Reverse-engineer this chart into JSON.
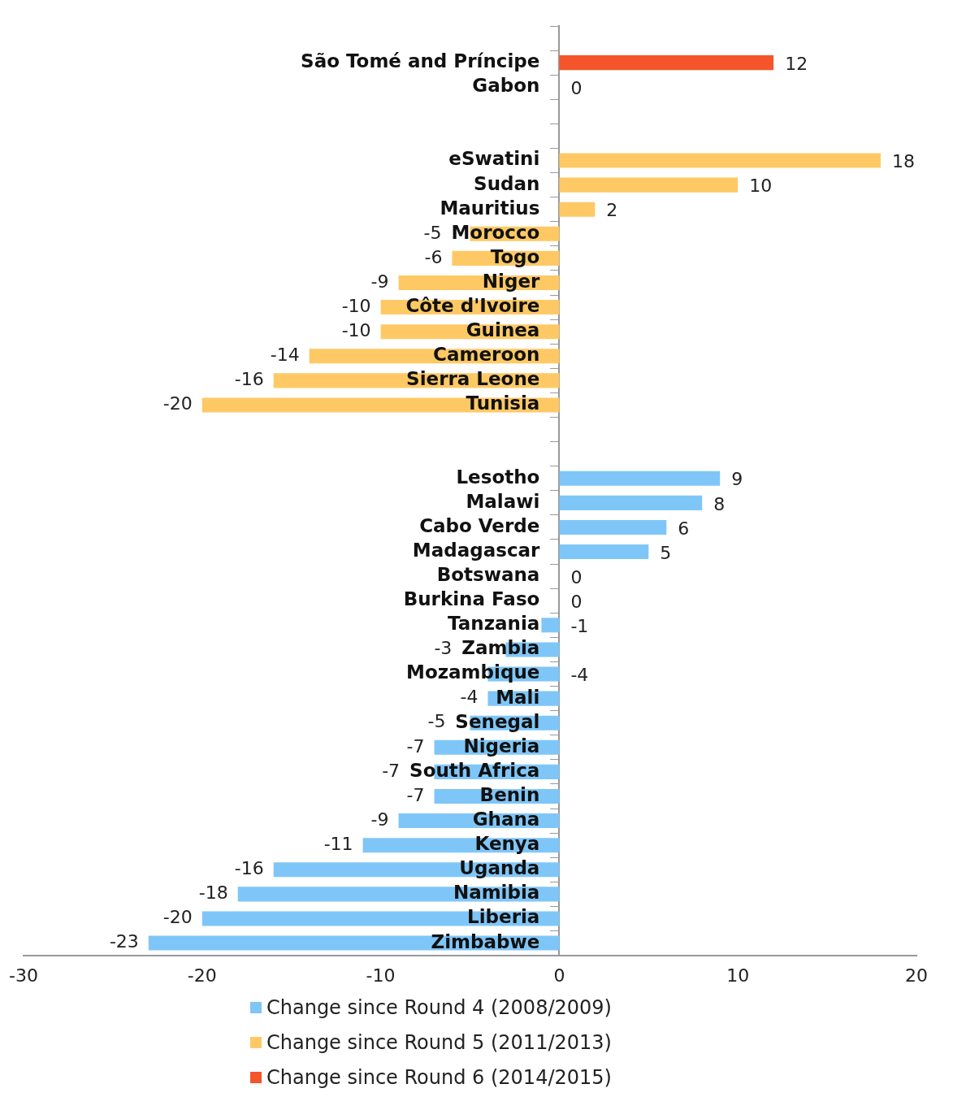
{
  "chart_data": {
    "type": "bar",
    "orientation": "horizontal",
    "categories": [
      null,
      "São Tomé and Príncipe",
      "Gabon",
      null,
      null,
      "eSwatini",
      "Sudan",
      "Mauritius",
      "Morocco",
      "Togo",
      "Niger",
      "Côte d'Ivoire",
      "Guinea",
      "Cameroon",
      "Sierra Leone",
      "Tunisia",
      null,
      null,
      "Lesotho",
      "Malawi",
      "Cabo Verde",
      "Madagascar",
      "Botswana",
      "Burkina Faso",
      "Tanzania",
      "Zambia",
      "Mozambique",
      "Mali",
      "Senegal",
      "Nigeria",
      "South Africa",
      "Benin",
      "Ghana",
      "Kenya",
      "Uganda",
      "Namibia",
      "Liberia",
      "Zimbabwe"
    ],
    "series": [
      {
        "name": "Change since Round 4 (2008/2009)",
        "color": "#7fc6f8",
        "values": [
          null,
          null,
          null,
          null,
          null,
          null,
          null,
          null,
          null,
          null,
          null,
          null,
          null,
          null,
          null,
          null,
          null,
          null,
          9,
          8,
          6,
          5,
          0,
          0,
          -1,
          -3,
          -4,
          -4,
          -5,
          -7,
          -7,
          -7,
          -9,
          -11,
          -16,
          -18,
          -20,
          -23
        ]
      },
      {
        "name": "Change since Round 5 (2011/2013)",
        "color": "#fec965",
        "values": [
          null,
          null,
          null,
          null,
          null,
          18,
          10,
          2,
          -5,
          -6,
          -9,
          -10,
          -10,
          -14,
          -16,
          -20,
          null,
          null,
          null,
          null,
          null,
          null,
          null,
          null,
          null,
          null,
          null,
          null,
          null,
          null,
          null,
          null,
          null,
          null,
          null,
          null,
          null,
          null
        ]
      },
      {
        "name": "Change since Round 6 (2014/2015)",
        "color": "#f4552a",
        "values": [
          null,
          12,
          0,
          null,
          null,
          null,
          null,
          null,
          null,
          null,
          null,
          null,
          null,
          null,
          null,
          null,
          null,
          null,
          null,
          null,
          null,
          null,
          null,
          null,
          null,
          null,
          null,
          null,
          null,
          null,
          null,
          null,
          null,
          null,
          null,
          null,
          null,
          null
        ]
      }
    ],
    "xlim": [
      -30,
      20
    ],
    "xticks": [
      -30,
      -20,
      -10,
      0,
      10,
      20
    ],
    "data_labels": true,
    "grid": false,
    "legend": "bottom"
  }
}
